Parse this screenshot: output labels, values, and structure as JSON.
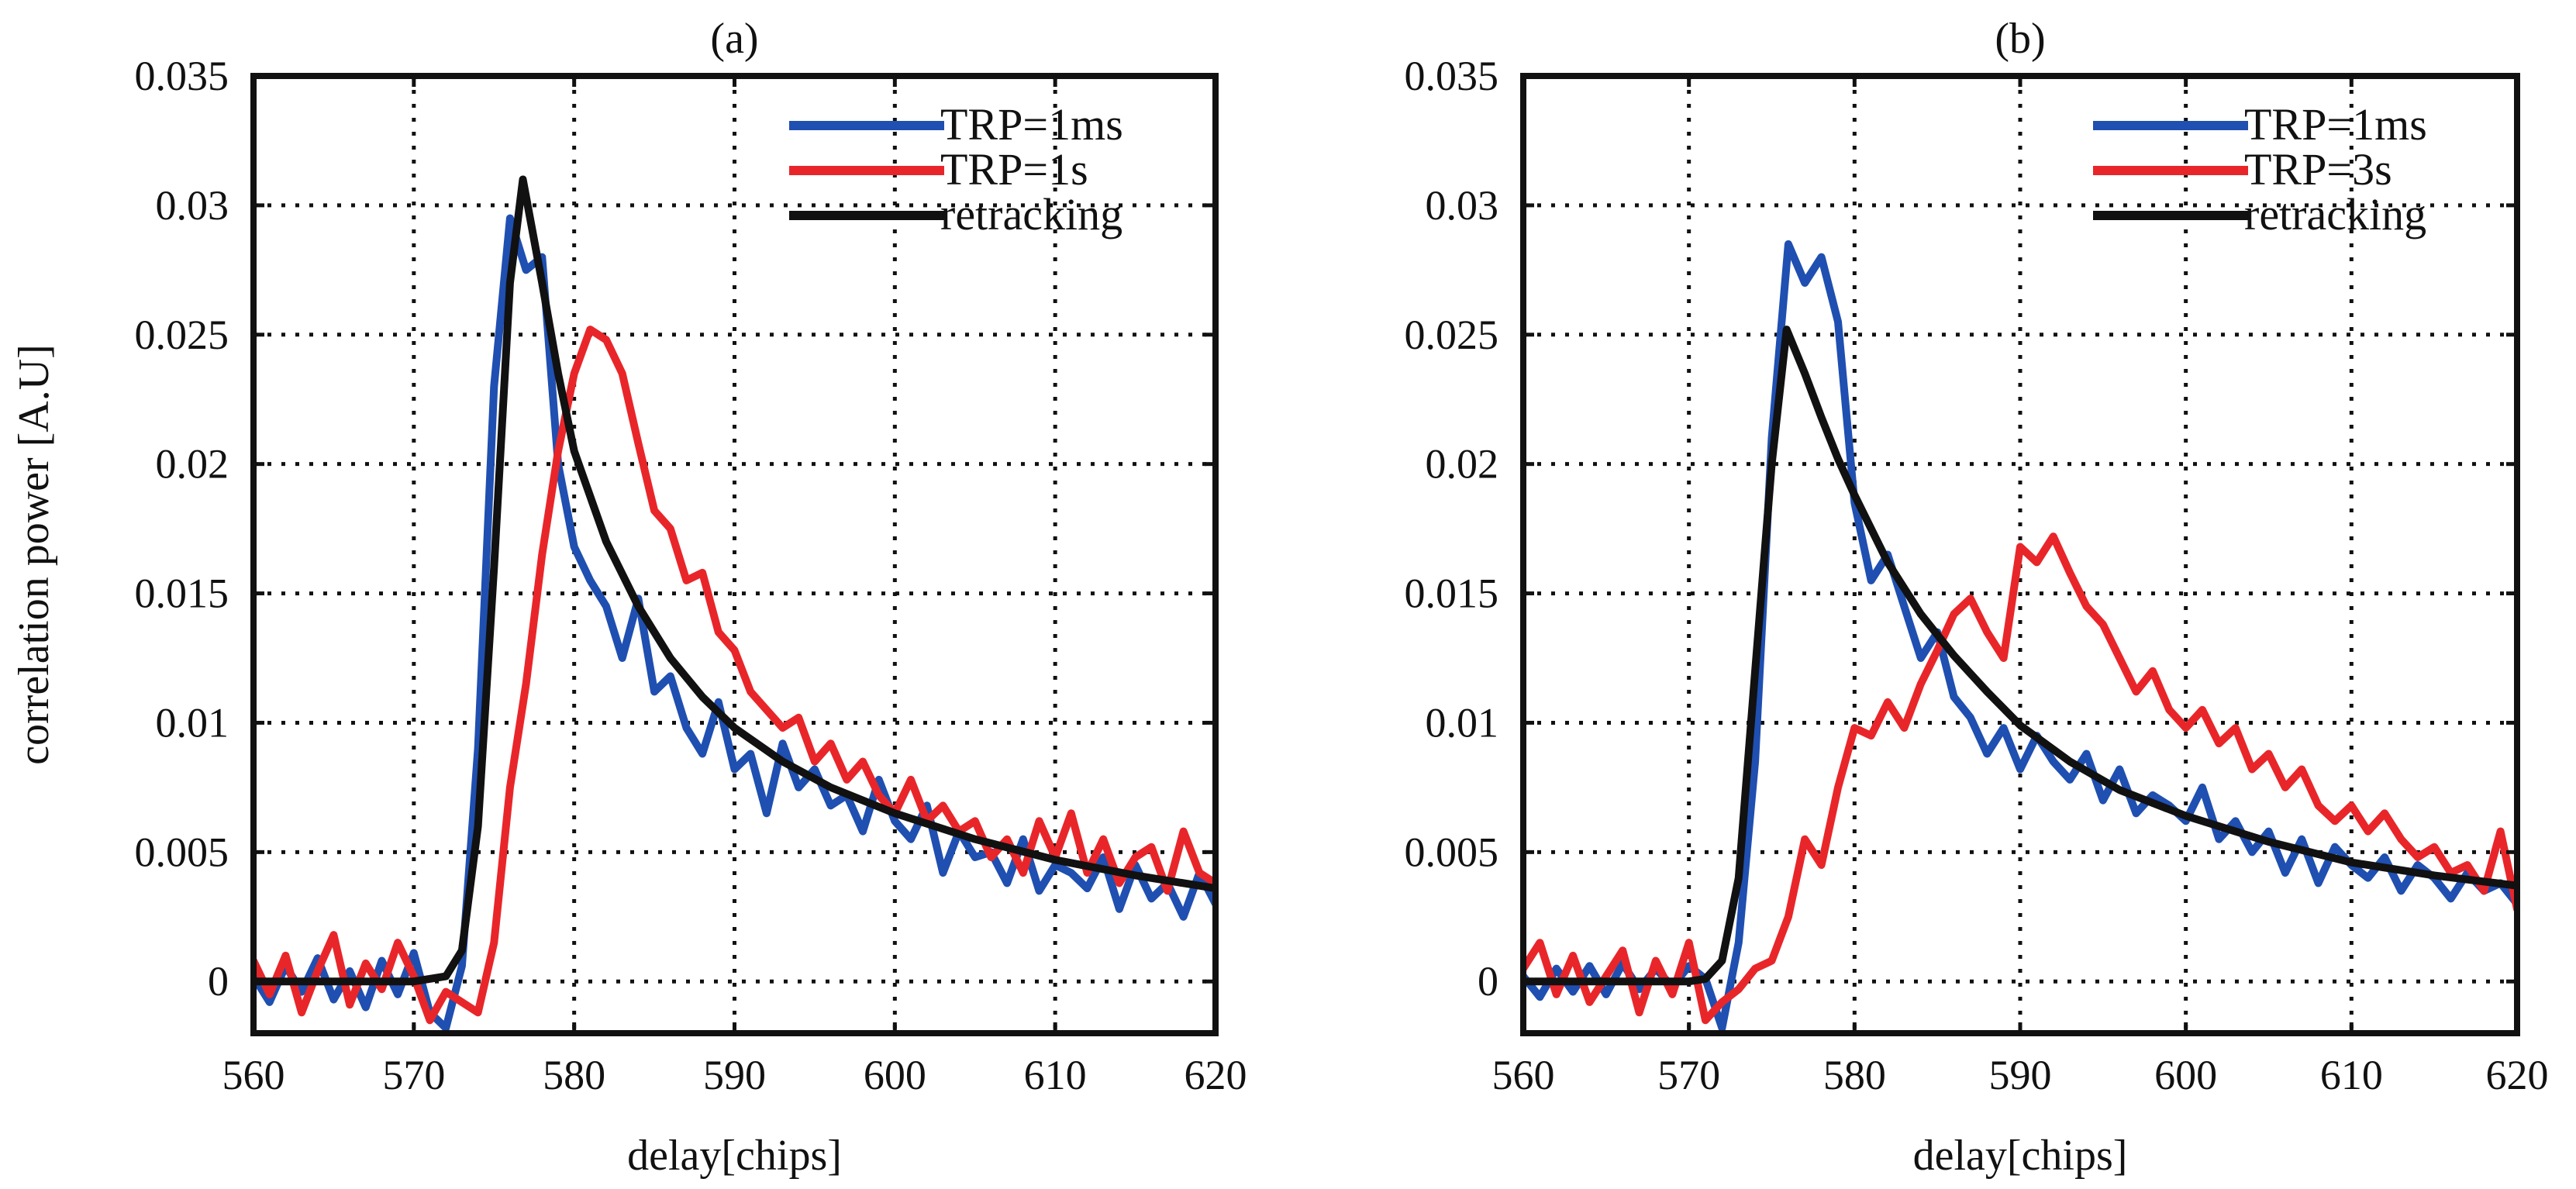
{
  "chart_data": [
    {
      "type": "line",
      "title": "(a)",
      "xlabel": "delay[chips]",
      "ylabel": "correlation power [A.U]",
      "xlim": [
        560,
        620
      ],
      "ylim": [
        -0.002,
        0.035
      ],
      "xticks": [
        560,
        570,
        580,
        590,
        600,
        610,
        620
      ],
      "yticks": [
        0,
        0.005,
        0.01,
        0.015,
        0.02,
        0.025,
        0.03,
        0.035
      ],
      "xtick_labels": [
        "560",
        "570",
        "580",
        "590",
        "600",
        "610",
        "620"
      ],
      "ytick_labels": [
        "0",
        "0.005",
        "0.01",
        "0.015",
        "0.02",
        "0.025",
        "0.03",
        "0.035"
      ],
      "grid": true,
      "legend": "top-right",
      "series": [
        {
          "name": "TRP=1ms",
          "color": "#1f4fb0",
          "x": [
            560,
            561,
            562,
            563,
            564,
            565,
            566,
            567,
            568,
            569,
            570,
            571,
            572,
            573,
            574,
            575,
            576,
            577,
            578,
            579,
            580,
            581,
            582,
            583,
            584,
            585,
            586,
            587,
            588,
            589,
            590,
            591,
            592,
            593,
            594,
            595,
            596,
            597,
            598,
            599,
            600,
            601,
            602,
            603,
            604,
            605,
            606,
            607,
            608,
            609,
            610,
            611,
            612,
            613,
            614,
            615,
            616,
            617,
            618,
            619,
            620
          ],
          "y": [
            0.0002,
            -0.0008,
            0.0006,
            -0.0004,
            0.0009,
            -0.0007,
            0.0004,
            -0.001,
            0.0008,
            -0.0005,
            0.0011,
            -0.0012,
            -0.0018,
            0.0006,
            0.009,
            0.023,
            0.0295,
            0.0275,
            0.028,
            0.02,
            0.0168,
            0.0155,
            0.0145,
            0.0125,
            0.0148,
            0.0112,
            0.0118,
            0.0098,
            0.0088,
            0.0108,
            0.0082,
            0.0088,
            0.0065,
            0.0092,
            0.0075,
            0.0082,
            0.0068,
            0.0072,
            0.0058,
            0.0078,
            0.0062,
            0.0055,
            0.0068,
            0.0042,
            0.0058,
            0.0048,
            0.005,
            0.0038,
            0.0055,
            0.0035,
            0.0045,
            0.0042,
            0.0036,
            0.0048,
            0.0028,
            0.0045,
            0.0032,
            0.0038,
            0.0025,
            0.0042,
            0.003
          ]
        },
        {
          "name": "TRP=1s",
          "color": "#e8262a",
          "x": [
            560,
            561,
            562,
            563,
            564,
            565,
            566,
            567,
            568,
            569,
            570,
            571,
            572,
            573,
            574,
            575,
            576,
            577,
            578,
            579,
            580,
            581,
            582,
            583,
            584,
            585,
            586,
            587,
            588,
            589,
            590,
            591,
            592,
            593,
            594,
            595,
            596,
            597,
            598,
            599,
            600,
            601,
            602,
            603,
            604,
            605,
            606,
            607,
            608,
            609,
            610,
            611,
            612,
            613,
            614,
            615,
            616,
            617,
            618,
            619,
            620
          ],
          "y": [
            0.0008,
            -0.0005,
            0.001,
            -0.0012,
            0.0004,
            0.0018,
            -0.0009,
            0.0007,
            -0.0003,
            0.0015,
            0.0002,
            -0.0015,
            -0.0004,
            -0.0008,
            -0.0012,
            0.0015,
            0.0075,
            0.0115,
            0.0165,
            0.0205,
            0.0235,
            0.0252,
            0.0248,
            0.0235,
            0.0208,
            0.0182,
            0.0175,
            0.0155,
            0.0158,
            0.0135,
            0.0128,
            0.0112,
            0.0105,
            0.0098,
            0.0102,
            0.0085,
            0.0092,
            0.0078,
            0.0085,
            0.0072,
            0.0065,
            0.0078,
            0.0062,
            0.0068,
            0.0058,
            0.0062,
            0.0048,
            0.0055,
            0.0042,
            0.0062,
            0.0048,
            0.0065,
            0.0042,
            0.0055,
            0.0038,
            0.0048,
            0.0052,
            0.0035,
            0.0058,
            0.0042,
            0.0038
          ]
        },
        {
          "name": "retracking",
          "color": "#111111",
          "x": [
            560,
            570,
            572,
            573,
            574,
            575,
            576,
            576.8,
            578,
            579,
            580,
            582,
            584,
            586,
            588,
            590,
            593,
            596,
            600,
            605,
            610,
            615,
            620
          ],
          "y": [
            0,
            0,
            0.0002,
            0.0012,
            0.006,
            0.016,
            0.027,
            0.031,
            0.027,
            0.0235,
            0.0205,
            0.017,
            0.0145,
            0.0125,
            0.011,
            0.0098,
            0.0085,
            0.0075,
            0.0065,
            0.0055,
            0.0047,
            0.0041,
            0.0036
          ]
        }
      ]
    },
    {
      "type": "line",
      "title": "(b)",
      "xlabel": "delay[chips]",
      "ylabel": "",
      "xlim": [
        560,
        620
      ],
      "ylim": [
        -0.002,
        0.035
      ],
      "xticks": [
        560,
        570,
        580,
        590,
        600,
        610,
        620
      ],
      "yticks": [
        0,
        0.005,
        0.01,
        0.015,
        0.02,
        0.025,
        0.03,
        0.035
      ],
      "xtick_labels": [
        "560",
        "570",
        "580",
        "590",
        "600",
        "610",
        "620"
      ],
      "ytick_labels": [
        "0",
        "0.005",
        "0.01",
        "0.015",
        "0.02",
        "0.025",
        "0.03",
        "0.035"
      ],
      "grid": true,
      "legend": "top-right",
      "series": [
        {
          "name": "TRP=1ms",
          "color": "#1f4fb0",
          "x": [
            560,
            561,
            562,
            563,
            564,
            565,
            566,
            567,
            568,
            569,
            570,
            571,
            572,
            573,
            574,
            575,
            576,
            577,
            578,
            579,
            580,
            581,
            582,
            583,
            584,
            585,
            586,
            587,
            588,
            589,
            590,
            591,
            592,
            593,
            594,
            595,
            596,
            597,
            598,
            599,
            600,
            601,
            602,
            603,
            604,
            605,
            606,
            607,
            608,
            609,
            610,
            611,
            612,
            613,
            614,
            615,
            616,
            617,
            618,
            619,
            620
          ],
          "y": [
            0.0002,
            -0.0006,
            0.0005,
            -0.0004,
            0.0006,
            -0.0005,
            0.0007,
            -0.0003,
            0.0005,
            -0.0002,
            0.0006,
            0.0001,
            -0.0018,
            0.0015,
            0.0085,
            0.021,
            0.0285,
            0.027,
            0.028,
            0.0255,
            0.0185,
            0.0155,
            0.0165,
            0.0145,
            0.0125,
            0.0135,
            0.011,
            0.0102,
            0.0088,
            0.0098,
            0.0082,
            0.0095,
            0.0085,
            0.0078,
            0.0088,
            0.007,
            0.0082,
            0.0065,
            0.0072,
            0.0068,
            0.0062,
            0.0075,
            0.0055,
            0.0062,
            0.005,
            0.0058,
            0.0042,
            0.0055,
            0.0038,
            0.0052,
            0.0045,
            0.004,
            0.0048,
            0.0035,
            0.0045,
            0.004,
            0.0032,
            0.0042,
            0.0035,
            0.0038,
            0.003
          ]
        },
        {
          "name": "TRP=3s",
          "color": "#e8262a",
          "x": [
            560,
            561,
            562,
            563,
            564,
            565,
            566,
            567,
            568,
            569,
            570,
            571,
            572,
            573,
            574,
            575,
            576,
            577,
            578,
            579,
            580,
            581,
            582,
            583,
            584,
            585,
            586,
            587,
            588,
            589,
            590,
            591,
            592,
            593,
            594,
            595,
            596,
            597,
            598,
            599,
            600,
            601,
            602,
            603,
            604,
            605,
            606,
            607,
            608,
            609,
            610,
            611,
            612,
            613,
            614,
            615,
            616,
            617,
            618,
            619,
            620
          ],
          "y": [
            0.0005,
            0.0015,
            -0.0005,
            0.001,
            -0.0008,
            0.0002,
            0.0012,
            -0.0012,
            0.0008,
            -0.0005,
            0.0015,
            -0.0015,
            -0.0008,
            -0.0003,
            0.0005,
            0.0008,
            0.0025,
            0.0055,
            0.0045,
            0.0075,
            0.0098,
            0.0095,
            0.0108,
            0.0098,
            0.0115,
            0.0128,
            0.0142,
            0.0148,
            0.0135,
            0.0125,
            0.0168,
            0.0162,
            0.0172,
            0.0158,
            0.0145,
            0.0138,
            0.0125,
            0.0112,
            0.012,
            0.0105,
            0.0098,
            0.0105,
            0.0092,
            0.0098,
            0.0082,
            0.0088,
            0.0075,
            0.0082,
            0.0068,
            0.0062,
            0.0068,
            0.0058,
            0.0065,
            0.0055,
            0.0048,
            0.0052,
            0.0042,
            0.0045,
            0.0035,
            0.0058,
            0.0028
          ]
        },
        {
          "name": "retracking",
          "color": "#111111",
          "x": [
            560,
            570,
            571,
            572,
            573,
            574,
            575,
            575.9,
            577,
            578,
            579,
            580,
            582,
            584,
            586,
            588,
            590,
            593,
            596,
            600,
            605,
            610,
            615,
            620
          ],
          "y": [
            0,
            0,
            0.0001,
            0.0008,
            0.004,
            0.012,
            0.02,
            0.0252,
            0.0235,
            0.0218,
            0.0202,
            0.0188,
            0.0162,
            0.0142,
            0.0126,
            0.0112,
            0.0099,
            0.0085,
            0.0074,
            0.0064,
            0.0054,
            0.0046,
            0.0041,
            0.0037
          ]
        }
      ]
    }
  ]
}
